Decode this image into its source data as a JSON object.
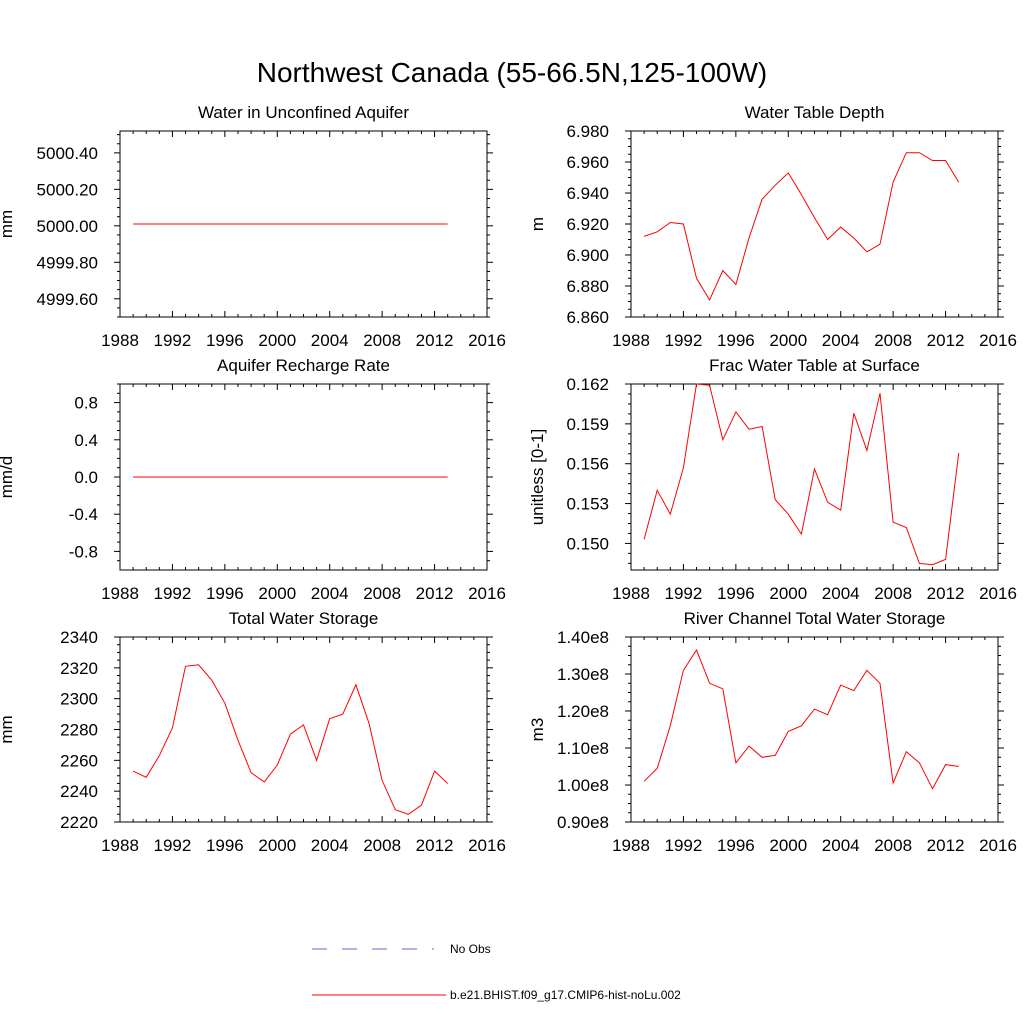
{
  "figure_title": "Northwest Canada (55-66.5N,125-100W)",
  "colors": {
    "model": "#ff0000",
    "obs": "#6666cc",
    "axis": "#000000"
  },
  "legend": {
    "obs_label": "No Obs",
    "model_label": "b.e21.BHIST.f09_g17.CMIP6-hist-noLu.002"
  },
  "chart_data": [
    {
      "type": "line",
      "title": "Water in Unconfined Aquifer",
      "ylabel": "mm",
      "xlim": [
        1988,
        2016
      ],
      "xticks": [
        1988,
        1992,
        1996,
        2000,
        2004,
        2008,
        2012,
        2016
      ],
      "ylim": [
        4999.5,
        5000.52
      ],
      "yticks": [
        4999.6,
        4999.8,
        5000.0,
        5000.2,
        5000.4
      ],
      "ytick_labels": [
        "4999.60",
        "4999.80",
        "5000.00",
        "5000.20",
        "5000.40"
      ],
      "series": [
        {
          "x": [
            1989,
            2013
          ],
          "values": [
            5000.01,
            5000.01
          ]
        }
      ]
    },
    {
      "type": "line",
      "title": "Water Table Depth",
      "ylabel": "m",
      "xlim": [
        1988,
        2016
      ],
      "xticks": [
        1988,
        1992,
        1996,
        2000,
        2004,
        2008,
        2012,
        2016
      ],
      "ylim": [
        6.86,
        6.98
      ],
      "yticks": [
        6.86,
        6.88,
        6.9,
        6.92,
        6.94,
        6.96,
        6.98
      ],
      "ytick_labels": [
        "6.860",
        "6.880",
        "6.900",
        "6.920",
        "6.940",
        "6.960",
        "6.980"
      ],
      "series": [
        {
          "x": [
            1989,
            1990,
            1991,
            1992,
            1993,
            1994,
            1995,
            1996,
            1997,
            1998,
            1999,
            2000,
            2001,
            2002,
            2003,
            2004,
            2005,
            2006,
            2007,
            2008,
            2009,
            2010,
            2011,
            2012,
            2013
          ],
          "values": [
            6.912,
            6.915,
            6.921,
            6.92,
            6.885,
            6.871,
            6.89,
            6.881,
            6.911,
            6.936,
            6.945,
            6.953,
            6.939,
            6.924,
            6.91,
            6.918,
            6.911,
            6.902,
            6.907,
            6.947,
            6.966,
            6.966,
            6.961,
            6.961,
            6.947
          ]
        }
      ]
    },
    {
      "type": "line",
      "title": "Aquifer Recharge Rate",
      "ylabel": "mm/d",
      "xlim": [
        1988,
        2016
      ],
      "xticks": [
        1988,
        1992,
        1996,
        2000,
        2004,
        2008,
        2012,
        2016
      ],
      "ylim": [
        -1.0,
        1.0
      ],
      "yticks": [
        -0.8,
        -0.4,
        0.0,
        0.4,
        0.8
      ],
      "ytick_labels": [
        "-0.8",
        "-0.4",
        "0.0",
        "0.4",
        "0.8"
      ],
      "series": [
        {
          "x": [
            1989,
            2013
          ],
          "values": [
            0.0,
            0.0
          ]
        }
      ]
    },
    {
      "type": "line",
      "title": "Frac Water Table at Surface",
      "ylabel": "unitless [0-1]",
      "xlim": [
        1988,
        2016
      ],
      "xticks": [
        1988,
        1992,
        1996,
        2000,
        2004,
        2008,
        2012,
        2016
      ],
      "ylim": [
        0.148,
        0.162
      ],
      "yticks": [
        0.15,
        0.153,
        0.156,
        0.159,
        0.162
      ],
      "ytick_labels": [
        "0.150",
        "0.153",
        "0.156",
        "0.159",
        "0.162"
      ],
      "series": [
        {
          "x": [
            1989,
            1990,
            1991,
            1992,
            1993,
            1994,
            1995,
            1996,
            1997,
            1998,
            1999,
            2000,
            2001,
            2002,
            2003,
            2004,
            2005,
            2006,
            2007,
            2008,
            2009,
            2010,
            2011,
            2012,
            2013
          ],
          "values": [
            0.1503,
            0.154,
            0.1522,
            0.1557,
            0.162,
            0.1619,
            0.1578,
            0.1599,
            0.1586,
            0.1588,
            0.1533,
            0.1522,
            0.1507,
            0.1556,
            0.1531,
            0.1525,
            0.1598,
            0.157,
            0.1613,
            0.1516,
            0.1512,
            0.1485,
            0.1484,
            0.1488,
            0.1568
          ]
        }
      ]
    },
    {
      "type": "line",
      "title": "Total Water Storage",
      "ylabel": "mm",
      "xlim": [
        1988,
        2016
      ],
      "xticks": [
        1988,
        1992,
        1996,
        2000,
        2004,
        2008,
        2012,
        2016
      ],
      "ylim": [
        2220,
        2340
      ],
      "yticks": [
        2220,
        2240,
        2260,
        2280,
        2300,
        2320,
        2340
      ],
      "ytick_labels": [
        "2220",
        "2240",
        "2260",
        "2280",
        "2300",
        "2320",
        "2340"
      ],
      "series": [
        {
          "x": [
            1989,
            1990,
            1991,
            1992,
            1993,
            1994,
            1995,
            1996,
            1997,
            1998,
            1999,
            2000,
            2001,
            2002,
            2003,
            2004,
            2005,
            2006,
            2007,
            2008,
            2009,
            2010,
            2011,
            2012,
            2013
          ],
          "values": [
            2253,
            2249,
            2263,
            2281,
            2321,
            2322,
            2312,
            2297,
            2273,
            2252,
            2246,
            2257,
            2277,
            2283,
            2260,
            2287,
            2290,
            2309,
            2284,
            2247,
            2228,
            2225,
            2231,
            2253,
            2245
          ]
        }
      ]
    },
    {
      "type": "line",
      "title": "River Channel Total Water Storage",
      "ylabel": "m3",
      "xlim": [
        1988,
        2016
      ],
      "xticks": [
        1988,
        1992,
        1996,
        2000,
        2004,
        2008,
        2012,
        2016
      ],
      "ylim": [
        90000000,
        140000000
      ],
      "yticks": [
        90000000,
        100000000,
        110000000,
        120000000,
        130000000,
        140000000
      ],
      "ytick_labels": [
        "0.90e8",
        "1.00e8",
        "1.10e8",
        "1.20e8",
        "1.30e8",
        "1.40e8"
      ],
      "series": [
        {
          "x": [
            1989,
            1990,
            1991,
            1992,
            1993,
            1994,
            1995,
            1996,
            1997,
            1998,
            1999,
            2000,
            2001,
            2002,
            2003,
            2004,
            2005,
            2006,
            2007,
            2008,
            2009,
            2010,
            2011,
            2012,
            2013
          ],
          "values": [
            101000000,
            104500000,
            116000000,
            131000000,
            136500000,
            127500000,
            126000000,
            106000000,
            110500000,
            107500000,
            108000000,
            114500000,
            116000000,
            120500000,
            119000000,
            127000000,
            125500000,
            131000000,
            127500000,
            100500000,
            109000000,
            106000000,
            99000000,
            105500000,
            105000000
          ]
        }
      ]
    }
  ]
}
